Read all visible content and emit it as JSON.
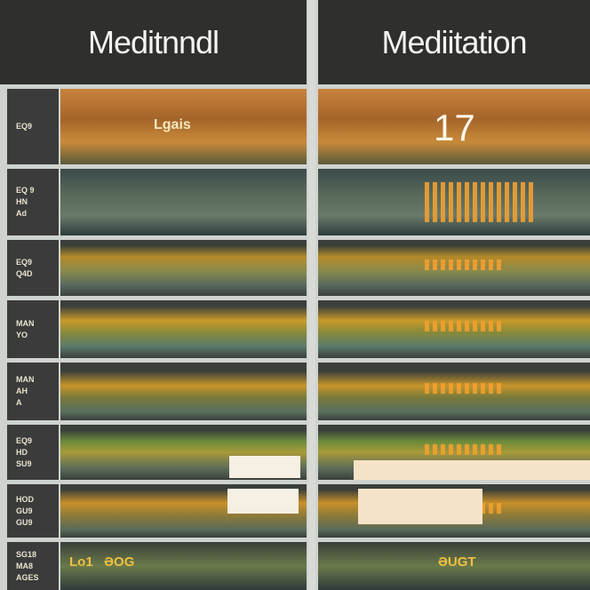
{
  "panels": [
    {
      "title": "Meditnndl"
    },
    {
      "title": "Mediitation"
    }
  ],
  "rows": [
    {
      "label": "EQ9",
      "left_text": "Lgais",
      "right_text": "17"
    },
    {
      "label": "EQ 9\nHN\nAd"
    },
    {
      "label": "EQ9\nQ4D"
    },
    {
      "label": "MAN\nYO"
    },
    {
      "label": "MAN\nAH\nA"
    },
    {
      "label": "EQ9\nHD\nSU9"
    },
    {
      "label": "HOD\nGU9\nGU9"
    },
    {
      "label": "SG18\nMA8\nAGES",
      "left_text": "Lo1   ƏOG",
      "right_text": "ƏUGT"
    }
  ]
}
